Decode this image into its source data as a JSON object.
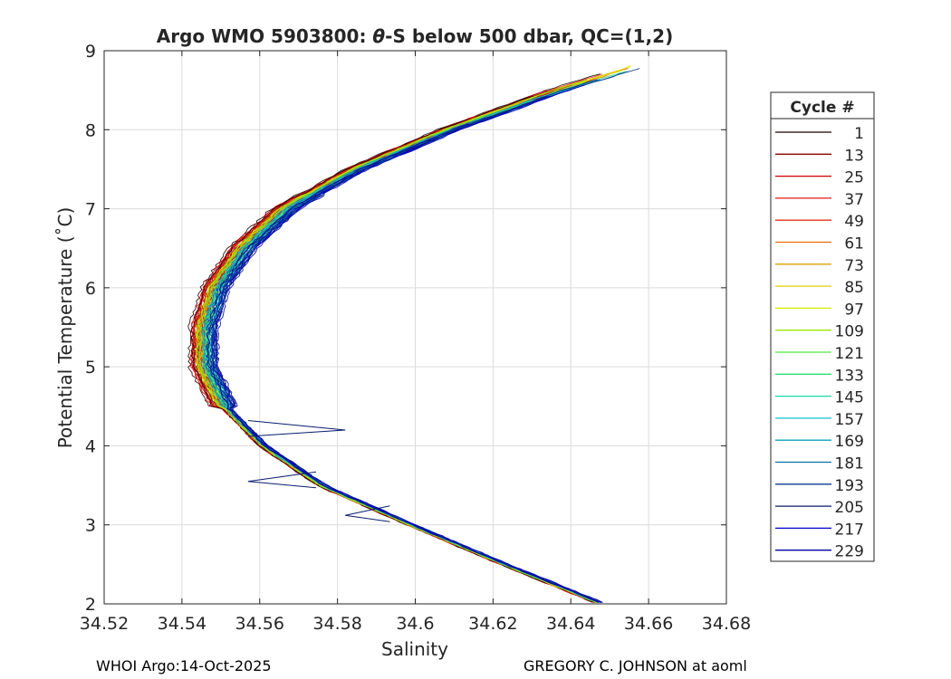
{
  "chart_data": {
    "type": "line",
    "title_prefix": "Argo WMO 5903800: ",
    "title_symbol": "θ",
    "title_suffix": "-S below 500 dbar,  QC=(1,2)",
    "xlabel": "Salinity",
    "ylabel": "Potential Temperature (˚C)",
    "xlim": [
      34.52,
      34.68
    ],
    "ylim": [
      2,
      9
    ],
    "x_ticks": [
      "34.52",
      "34.54",
      "34.56",
      "34.58",
      "34.6",
      "34.62",
      "34.64",
      "34.66",
      "34.68"
    ],
    "y_ticks": [
      "2",
      "3",
      "4",
      "5",
      "6",
      "7",
      "8",
      "9"
    ],
    "grid": true,
    "legend_placement": "right-outside",
    "legend": {
      "title": "Cycle #",
      "entries": [
        {
          "label": "1",
          "color": "#1a0000"
        },
        {
          "label": "13",
          "color": "#8b0000"
        },
        {
          "label": "25",
          "color": "#cc0000"
        },
        {
          "label": "37",
          "color": "#e21a1a"
        },
        {
          "label": "49",
          "color": "#e6301a"
        },
        {
          "label": "61",
          "color": "#e86a00"
        },
        {
          "label": "73",
          "color": "#d9a000"
        },
        {
          "label": "85",
          "color": "#e0d000"
        },
        {
          "label": "97",
          "color": "#d8ea00"
        },
        {
          "label": "109",
          "color": "#9ae800"
        },
        {
          "label": "121",
          "color": "#55e640"
        },
        {
          "label": "133",
          "color": "#26e07a"
        },
        {
          "label": "145",
          "color": "#18d8b0"
        },
        {
          "label": "157",
          "color": "#10c0d0"
        },
        {
          "label": "169",
          "color": "#0aa0c0"
        },
        {
          "label": "181",
          "color": "#0a70b0"
        },
        {
          "label": "193",
          "color": "#0a3c90"
        },
        {
          "label": "205",
          "color": "#081c6e"
        },
        {
          "label": "217",
          "color": "#0000c8"
        },
        {
          "label": "229",
          "color": "#0000a8"
        }
      ]
    },
    "mean_profile": {
      "theta": [
        2.0,
        2.5,
        3.0,
        3.5,
        4.0,
        4.5,
        5.0,
        5.5,
        6.0,
        6.5,
        7.0,
        7.5,
        8.0,
        8.5,
        8.8
      ],
      "salinity": [
        34.648,
        34.623,
        34.599,
        34.576,
        34.561,
        34.551,
        34.546,
        34.546,
        34.549,
        34.556,
        34.567,
        34.585,
        34.609,
        34.637,
        34.657
      ]
    },
    "annotations": [
      {
        "theta": 4.2,
        "salinity": 34.582,
        "note": "spike"
      },
      {
        "theta": 3.55,
        "salinity": 34.557,
        "note": "spike"
      },
      {
        "theta": 3.12,
        "salinity": 34.582,
        "note": "spike"
      }
    ]
  },
  "footer": {
    "left": "WHOI Argo:14-Oct-2025",
    "right": "GREGORY C. JOHNSON at aoml"
  }
}
